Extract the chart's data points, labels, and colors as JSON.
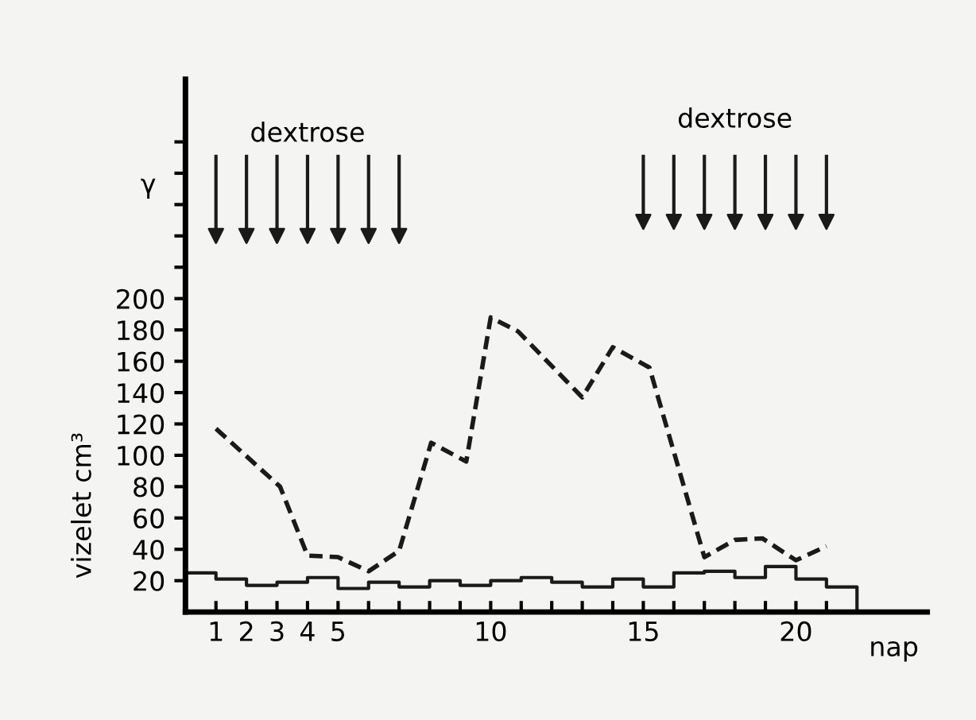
{
  "chart_data": {
    "type": "line",
    "xlabel": "nap",
    "ylabel": "vizelet cm³",
    "x": [
      1,
      3.1,
      4,
      5,
      6,
      7,
      8.05,
      9.2,
      10,
      10.9,
      13,
      14,
      15.2,
      17,
      18,
      18.9,
      20,
      21
    ],
    "series": [
      {
        "color": "#1a1a1a",
        "line_style": "dashed",
        "values": [
          117,
          80,
          36,
          35,
          26,
          39,
          108,
          96,
          188,
          179,
          137,
          169,
          156,
          35,
          46,
          47,
          33,
          42
        ]
      },
      {
        "type": "step",
        "color": "#1a1a1a",
        "line_style": "solid",
        "x": [
          0,
          1,
          2,
          3,
          4,
          5,
          6,
          7,
          8,
          9,
          10,
          11,
          12,
          13,
          14,
          15,
          16,
          17,
          18,
          19,
          20,
          21,
          22
        ],
        "values": [
          25,
          21,
          17,
          19,
          22,
          15,
          19,
          16,
          20,
          17,
          20,
          22,
          19,
          16,
          21,
          16,
          25,
          26,
          22,
          29,
          21,
          16,
          0
        ]
      },
      {
        "type": "scatter",
        "marker": "triangle",
        "color": "#1a1a1a",
        "x": [
          1,
          2,
          3,
          4,
          5,
          6,
          7,
          15,
          16,
          17,
          18,
          19,
          20,
          21
        ],
        "values": [
          240,
          240,
          240,
          240,
          240,
          240,
          240,
          249,
          249,
          249,
          249,
          249,
          249,
          249
        ]
      }
    ],
    "annotations": [
      {
        "text": "dextrose",
        "x": 4,
        "y": 240
      },
      {
        "text": "dextrose",
        "x": 18,
        "y": 249
      },
      "γ"
    ],
    "xlim": [
      0,
      24.3
    ],
    "ylim": [
      0,
      340
    ],
    "xticks": [
      1,
      2,
      3,
      4,
      5,
      {
        "value": 6,
        "label": null
      },
      {
        "value": 7,
        "label": null
      },
      {
        "value": 8,
        "label": null
      },
      {
        "value": 9,
        "label": null
      },
      10,
      {
        "value": 11,
        "label": null
      },
      {
        "value": 12,
        "label": null
      },
      {
        "value": 13,
        "label": null
      },
      {
        "value": 14,
        "label": null
      },
      15,
      {
        "value": 16,
        "label": null
      },
      {
        "value": 17,
        "label": null
      },
      {
        "value": 18,
        "label": null
      },
      {
        "value": 19,
        "label": null
      },
      20,
      {
        "value": 21,
        "label": null
      }
    ],
    "yticks": [
      20,
      40,
      60,
      80,
      100,
      120,
      140,
      160,
      180,
      200,
      {
        "value": 220,
        "label": null
      },
      {
        "value": 240,
        "label": null
      },
      {
        "value": 260,
        "label": null
      },
      {
        "value": 280,
        "label": null
      },
      {
        "value": 300,
        "label": null
      }
    ],
    "grid": false,
    "legend": false
  }
}
